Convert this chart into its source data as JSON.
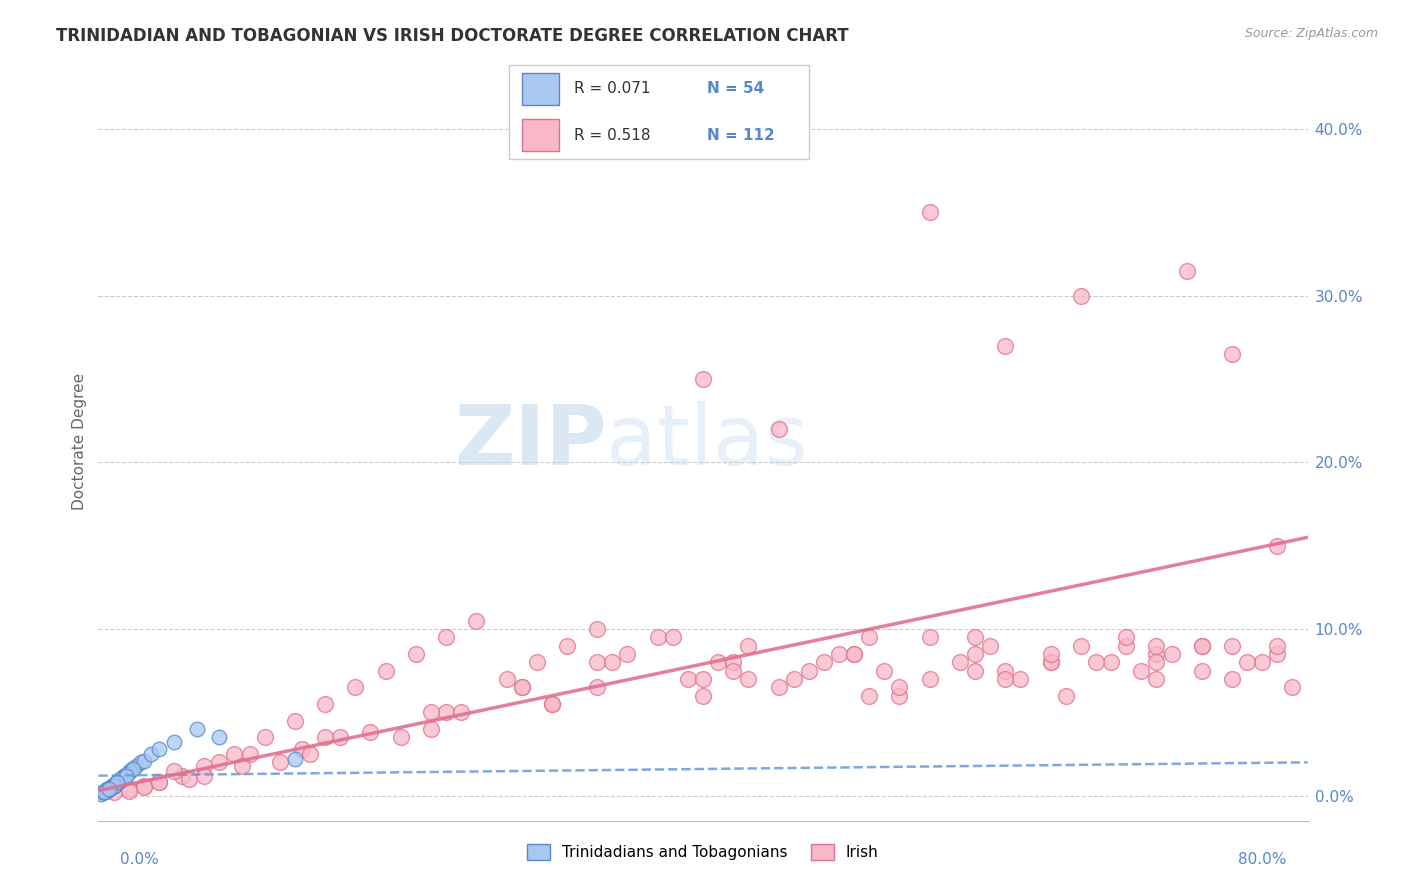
{
  "title": "TRINIDADIAN AND TOBAGONIAN VS IRISH DOCTORATE DEGREE CORRELATION CHART",
  "source": "Source: ZipAtlas.com",
  "ylabel": "Doctorate Degree",
  "ytick_values": [
    0.0,
    10.0,
    20.0,
    30.0,
    40.0
  ],
  "xmin": 0.0,
  "xmax": 80.0,
  "ymin": -1.5,
  "ymax": 44.0,
  "blue_color": "#a8c8f0",
  "blue_edge": "#5588cc",
  "pink_color": "#f8b8c8",
  "pink_edge": "#e07090",
  "blue_line_color": "#6699dd",
  "pink_line_color": "#e07090",
  "axis_label_color": "#5588cc",
  "title_color": "#333333",
  "legend_label_blue": "Trinidadians and Tobagonians",
  "legend_label_pink": "Irish",
  "watermark_zip": "ZIP",
  "watermark_atlas": "atlas",
  "blue_scatter_x": [
    0.3,
    0.5,
    0.8,
    1.0,
    1.2,
    1.5,
    0.4,
    0.6,
    0.9,
    1.1,
    1.3,
    1.8,
    2.0,
    2.2,
    0.7,
    1.4,
    1.6,
    2.5,
    0.2,
    0.8,
    1.0,
    1.2,
    1.7,
    2.8,
    0.5,
    0.9,
    1.3,
    3.0,
    0.6,
    1.1,
    1.5,
    2.1,
    0.4,
    0.7,
    1.0,
    1.4,
    3.5,
    0.3,
    0.8,
    1.2,
    1.9,
    4.0,
    0.5,
    1.0,
    2.3,
    5.0,
    0.6,
    1.8,
    6.5,
    0.4,
    1.2,
    8.0,
    0.7,
    13.0
  ],
  "blue_scatter_y": [
    0.2,
    0.3,
    0.5,
    0.6,
    0.8,
    1.0,
    0.2,
    0.4,
    0.5,
    0.7,
    0.9,
    1.2,
    1.4,
    1.6,
    0.4,
    0.9,
    1.1,
    1.8,
    0.1,
    0.5,
    0.6,
    0.8,
    1.2,
    2.0,
    0.3,
    0.6,
    0.9,
    2.1,
    0.3,
    0.7,
    1.0,
    1.5,
    0.2,
    0.4,
    0.6,
    1.0,
    2.5,
    0.2,
    0.5,
    0.8,
    1.3,
    2.8,
    0.3,
    0.6,
    1.6,
    3.2,
    0.4,
    1.2,
    4.0,
    0.2,
    0.8,
    3.5,
    0.4,
    2.2
  ],
  "pink_scatter_x": [
    1.0,
    2.0,
    3.0,
    4.0,
    5.5,
    7.0,
    9.0,
    11.0,
    13.0,
    15.0,
    17.0,
    19.0,
    21.0,
    23.0,
    25.0,
    27.0,
    29.0,
    31.0,
    33.0,
    35.0,
    37.0,
    39.0,
    41.0,
    43.0,
    45.0,
    47.0,
    49.0,
    51.0,
    53.0,
    55.0,
    57.0,
    59.0,
    61.0,
    63.0,
    65.0,
    67.0,
    69.0,
    71.0,
    73.0,
    75.0,
    77.0,
    79.0,
    3.0,
    6.0,
    9.5,
    13.5,
    18.0,
    23.0,
    28.0,
    33.0,
    38.0,
    43.0,
    48.0,
    53.0,
    58.0,
    63.0,
    68.0,
    73.0,
    78.0,
    5.0,
    10.0,
    16.0,
    22.0,
    28.0,
    34.0,
    40.0,
    46.0,
    52.0,
    58.0,
    64.0,
    70.0,
    76.0,
    8.0,
    15.0,
    24.0,
    33.0,
    42.0,
    51.0,
    60.0,
    70.0,
    2.0,
    7.0,
    14.0,
    22.0,
    30.0,
    40.0,
    50.0,
    60.0,
    70.0,
    78.0,
    4.0,
    12.0,
    20.0,
    30.0,
    42.0,
    55.0,
    66.0,
    75.0,
    45.0,
    60.0,
    72.0,
    55.0,
    65.0,
    75.0,
    50.0,
    68.0,
    73.0,
    58.0,
    63.0,
    70.0,
    78.0,
    40.0
  ],
  "pink_scatter_y": [
    0.2,
    0.4,
    0.6,
    0.8,
    1.2,
    1.8,
    2.5,
    3.5,
    4.5,
    5.5,
    6.5,
    7.5,
    8.5,
    9.5,
    10.5,
    7.0,
    8.0,
    9.0,
    10.0,
    8.5,
    9.5,
    7.0,
    8.0,
    9.0,
    6.5,
    7.5,
    8.5,
    9.5,
    6.0,
    7.0,
    8.0,
    9.0,
    7.0,
    8.0,
    9.0,
    8.0,
    7.5,
    8.5,
    9.0,
    7.0,
    8.0,
    6.5,
    0.5,
    1.0,
    1.8,
    2.8,
    3.8,
    5.0,
    6.5,
    8.0,
    9.5,
    7.0,
    8.0,
    6.5,
    7.5,
    8.0,
    9.0,
    7.5,
    8.5,
    1.5,
    2.5,
    3.5,
    5.0,
    6.5,
    8.0,
    6.0,
    7.0,
    7.5,
    8.5,
    6.0,
    7.0,
    8.0,
    2.0,
    3.5,
    5.0,
    6.5,
    8.0,
    6.0,
    7.5,
    8.5,
    0.3,
    1.2,
    2.5,
    4.0,
    5.5,
    7.0,
    8.5,
    7.0,
    8.0,
    9.0,
    0.8,
    2.0,
    3.5,
    5.5,
    7.5,
    9.5,
    8.0,
    9.0,
    22.0,
    27.0,
    31.5,
    35.0,
    30.0,
    26.5,
    8.5,
    9.5,
    9.0,
    9.5,
    8.5,
    9.0,
    15.0,
    25.0
  ],
  "blue_trend_x": [
    0,
    80
  ],
  "blue_trend_y": [
    1.2,
    2.0
  ],
  "pink_trend_x": [
    0,
    80
  ],
  "pink_trend_y": [
    0.3,
    15.5
  ]
}
